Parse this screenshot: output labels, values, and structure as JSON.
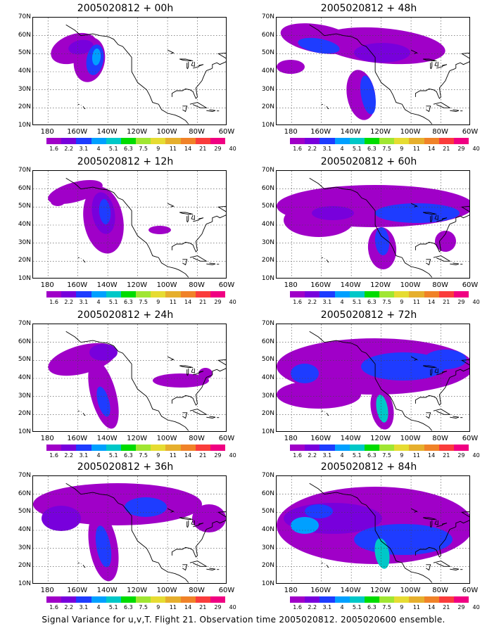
{
  "caption": "Signal Variance for u,v,T. Flight 21. Observation time 2005020812. 2005020600 ensemble.",
  "lat_labels": [
    "70N",
    "60N",
    "50N",
    "40N",
    "30N",
    "20N",
    "10N"
  ],
  "lon_labels": [
    "180",
    "160W",
    "140W",
    "120W",
    "100W",
    "80W",
    "60W"
  ],
  "colorbar_labels": [
    "1.6",
    "2.2",
    "3.1",
    "4",
    "5.1",
    "6.3",
    "7.5",
    "9",
    "11",
    "14",
    "21",
    "29",
    "40"
  ],
  "colorbar_colors": [
    "#a000c8",
    "#7800dc",
    "#1e3cff",
    "#00a0ff",
    "#00c8c8",
    "#00dc00",
    "#a0e632",
    "#e6dc32",
    "#e6af2d",
    "#f08228",
    "#fa3c3c",
    "#f00082"
  ],
  "panels": [
    {
      "id": "p00",
      "title": "2005020812 + 00h"
    },
    {
      "id": "p48",
      "title": "2005020812 + 48h"
    },
    {
      "id": "p12",
      "title": "2005020812 + 12h"
    },
    {
      "id": "p60",
      "title": "2005020812 + 60h"
    },
    {
      "id": "p24",
      "title": "2005020812 + 24h"
    },
    {
      "id": "p72",
      "title": "2005020812 + 72h"
    },
    {
      "id": "p36",
      "title": "2005020812 + 36h"
    },
    {
      "id": "p84",
      "title": "2005020812 + 84h"
    }
  ]
}
